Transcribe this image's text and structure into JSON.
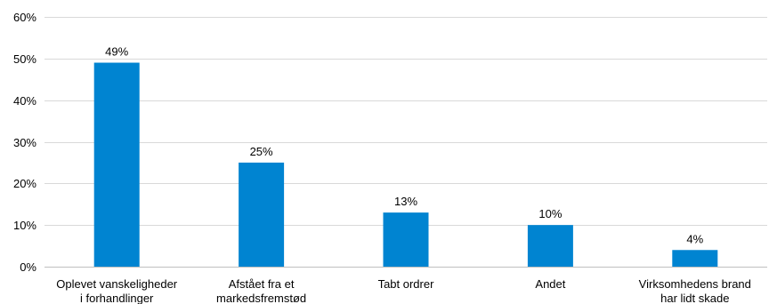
{
  "chart_data": {
    "type": "bar",
    "categories": [
      [
        "Oplevet vanskeligheder",
        "i forhandlinger"
      ],
      [
        "Afstået fra et",
        "markedsfremstød"
      ],
      [
        "Tabt ordrer"
      ],
      [
        "Andet"
      ],
      [
        "Virksomhedens brand",
        "har lidt skade"
      ]
    ],
    "values": [
      49,
      25,
      13,
      10,
      4
    ],
    "value_labels": [
      "49%",
      "25%",
      "13%",
      "10%",
      "4%"
    ],
    "ylim": [
      0,
      60
    ],
    "yticks": [
      0,
      10,
      20,
      30,
      40,
      50,
      60
    ],
    "ytick_labels": [
      "0%",
      "10%",
      "20%",
      "30%",
      "40%",
      "50%",
      "60%"
    ],
    "grid": true,
    "legend": "none",
    "bar_color": "#0084d1"
  }
}
